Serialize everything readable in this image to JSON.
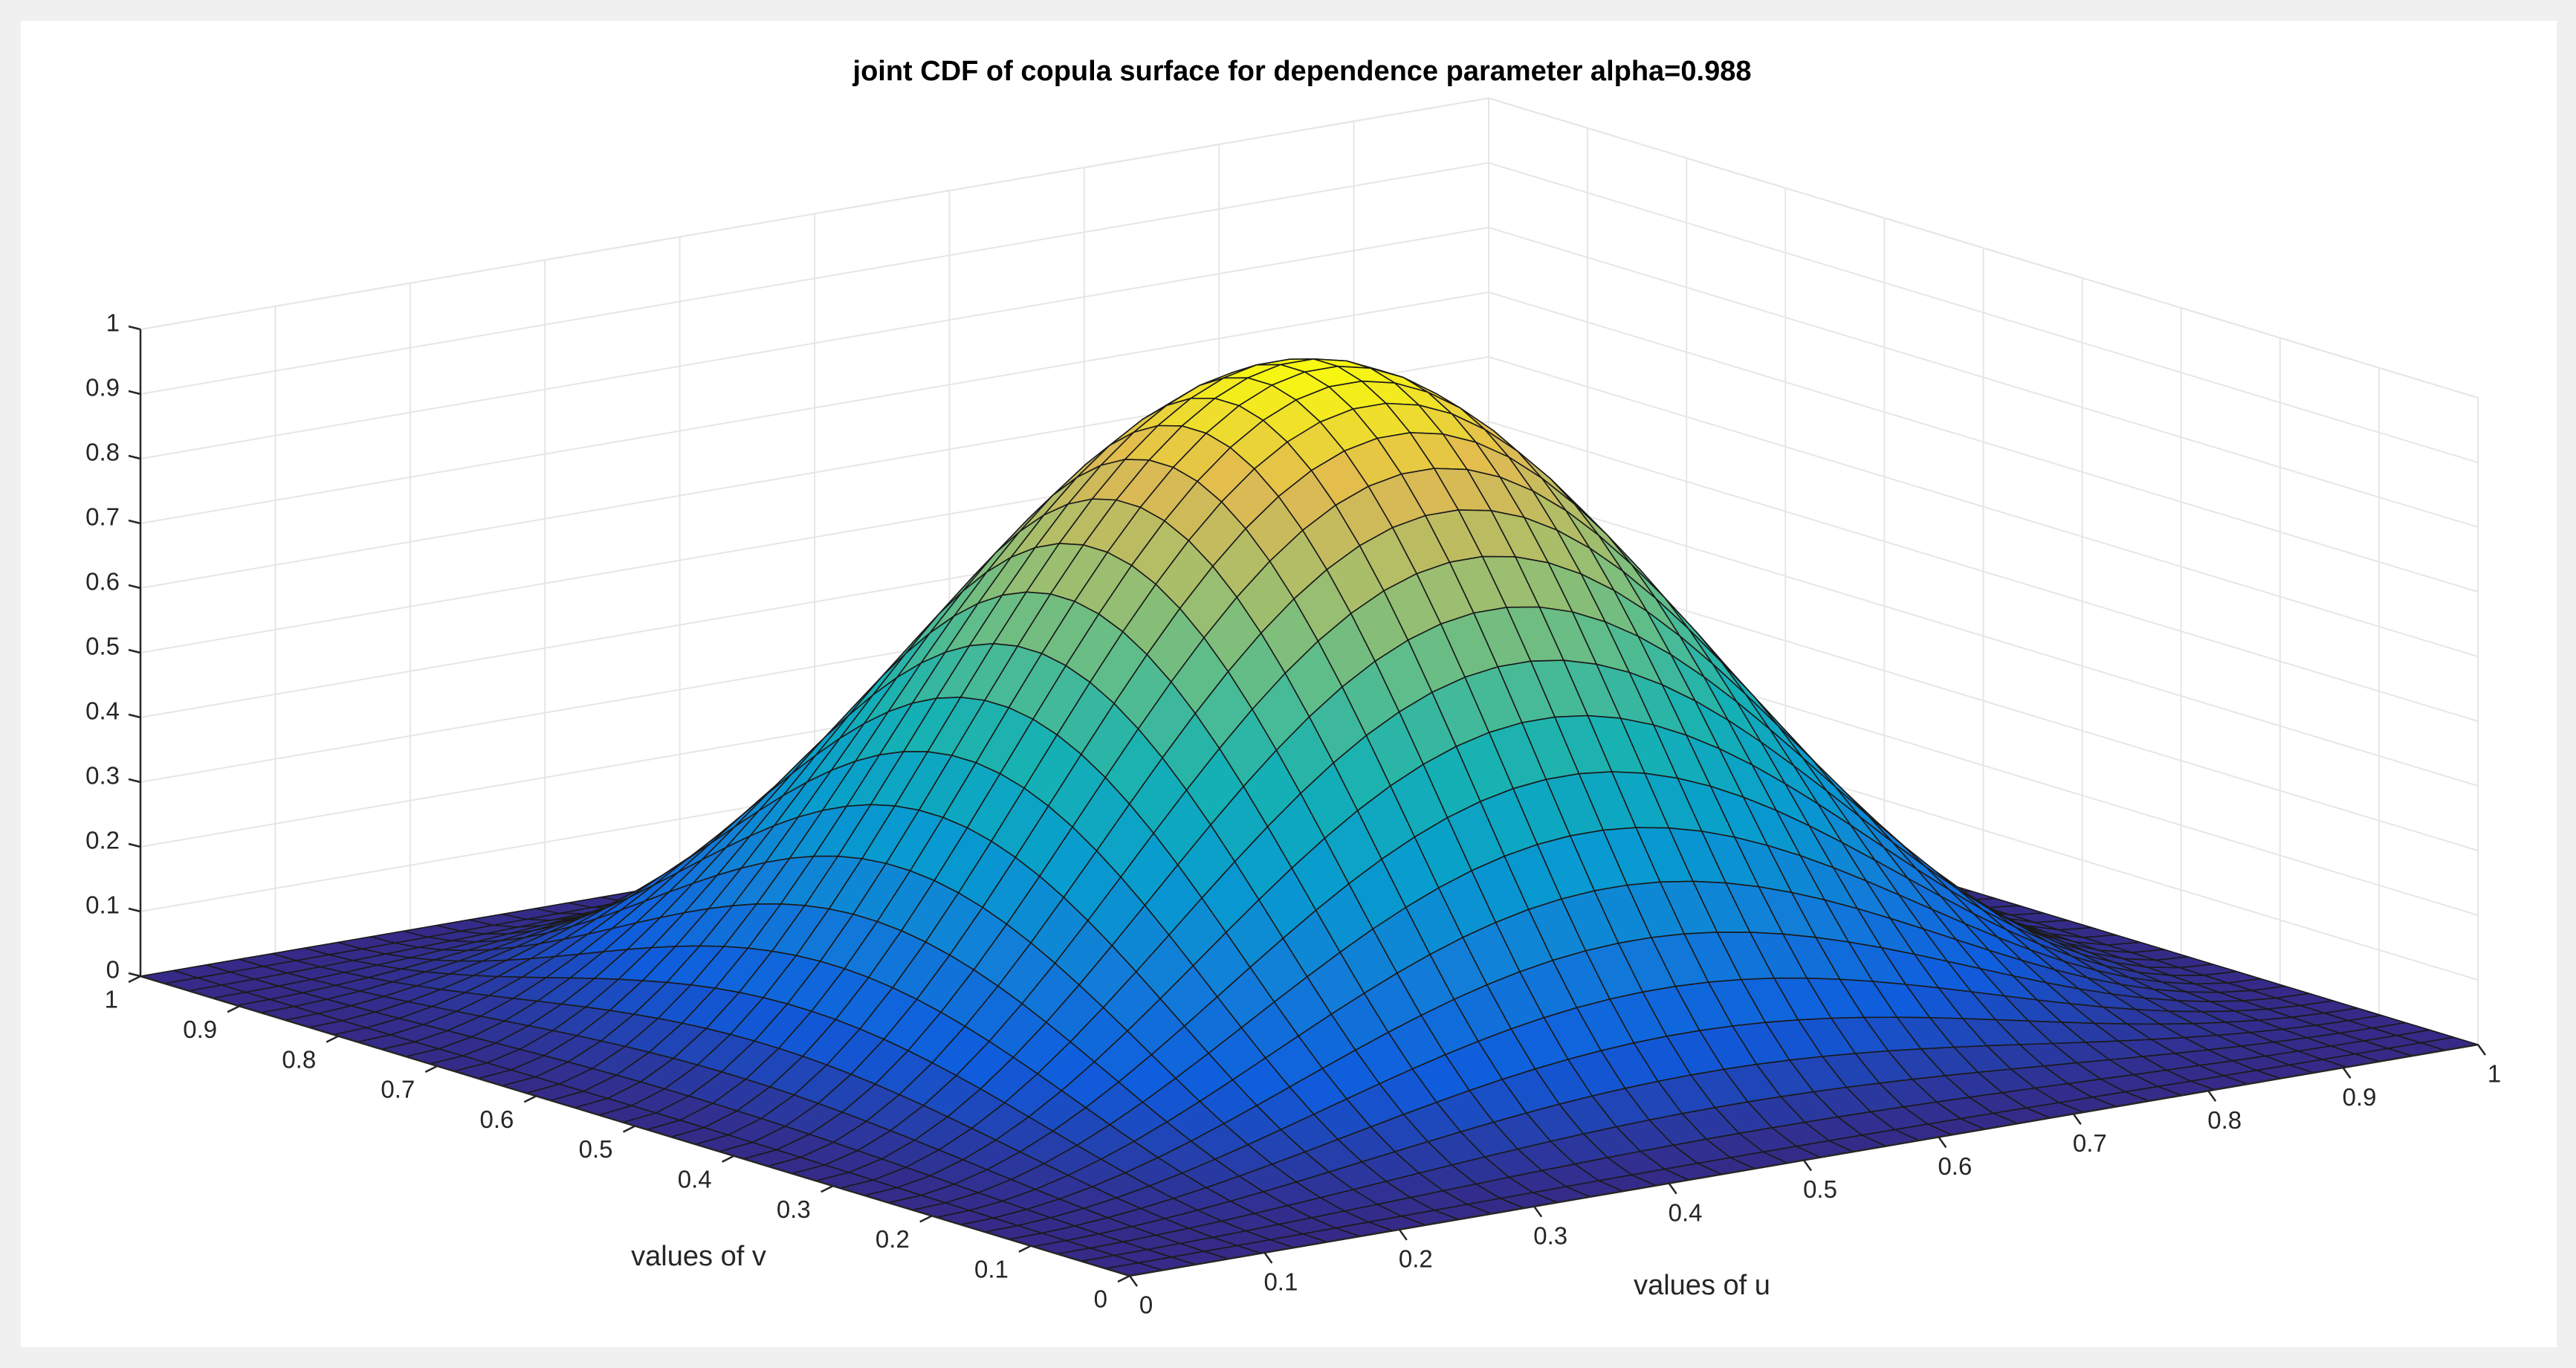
{
  "chart_data": {
    "type": "surface",
    "title": "joint CDF of copula surface for dependence parameter alpha=0.988",
    "xlabel": "values of u",
    "ylabel": "values of v",
    "zlabel": "",
    "xlim": [
      0,
      1
    ],
    "ylim": [
      0,
      1
    ],
    "zlim": [
      0,
      1
    ],
    "grid": true,
    "colormap": "parula",
    "mesh": 41,
    "x_ticks": [
      "0",
      "0.1",
      "0.2",
      "0.3",
      "0.4",
      "0.5",
      "0.6",
      "0.7",
      "0.8",
      "0.9",
      "1"
    ],
    "y_ticks": [
      "0",
      "0.1",
      "0.2",
      "0.3",
      "0.4",
      "0.5",
      "0.6",
      "0.7",
      "0.8",
      "0.9",
      "1"
    ],
    "z_ticks": [
      "0",
      "0.1",
      "0.2",
      "0.3",
      "0.4",
      "0.5",
      "0.6",
      "0.7",
      "0.8",
      "0.9",
      "1"
    ],
    "z_function": "z = sin(pi*u)^2 * sin(pi*v)^2 (bump surface: 0 along all edges, peak 1 at u=v=0.5)",
    "z_peak": {
      "u": 0.5,
      "v": 0.5,
      "z": 1.0
    },
    "colors": {
      "background": "#f0f0f0",
      "axes": "#ffffff",
      "grid": "#e6e6e6",
      "edge": "#1a1a1a"
    }
  }
}
